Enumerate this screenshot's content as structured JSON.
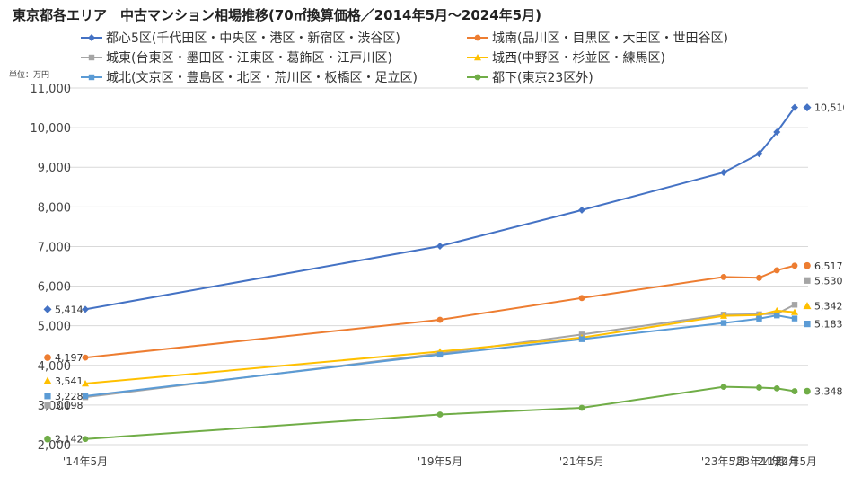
{
  "chart_data": {
    "type": "line",
    "title": "東京都各エリア　中古マンション相場推移(70㎡換算価格／2014年5月～2024年5月)",
    "unit_label": "単位：万円",
    "categories": [
      "'14年5月",
      "'19年5月",
      "'21年5月",
      "'23年5月",
      "'23年11月",
      "'24年2月",
      "'24年5月"
    ],
    "x_months": [
      0,
      60,
      84,
      108,
      114,
      117,
      120
    ],
    "ylim": [
      2000,
      11000
    ],
    "yticks": [
      2000,
      3000,
      4000,
      5000,
      6000,
      7000,
      8000,
      9000,
      10000,
      11000
    ],
    "ytick_labels": [
      "2,000",
      "3,000",
      "4,000",
      "5,000",
      "6,000",
      "7,000",
      "8,000",
      "9,000",
      "10,000",
      "11,000"
    ],
    "series": [
      {
        "name": "都心5区(千代田区・中央区・港区・新宿区・渋谷区)",
        "color": "#4472C4",
        "marker": "diamond",
        "values": [
          5414,
          7010,
          7920,
          8870,
          9340,
          9890,
          10510
        ],
        "start_label": "5,414",
        "end_label": "10,510"
      },
      {
        "name": "城南(品川区・目黒区・大田区・世田谷区)",
        "color": "#ED7D31",
        "marker": "circle",
        "values": [
          4197,
          5150,
          5700,
          6230,
          6210,
          6400,
          6517
        ],
        "start_label": "4,197",
        "end_label": "6,517"
      },
      {
        "name": "城東(台東区・墨田区・江東区・葛飾区・江戸川区)",
        "color": "#A5A5A5",
        "marker": "square",
        "values": [
          3198,
          4300,
          4780,
          5280,
          5290,
          5300,
          5530
        ],
        "start_label": "3,198",
        "end_label": "5,530"
      },
      {
        "name": "城西(中野区・杉並区・練馬区)",
        "color": "#FFC000",
        "marker": "triangle",
        "values": [
          3541,
          4350,
          4700,
          5250,
          5270,
          5380,
          5342
        ],
        "start_label": "3,541",
        "end_label": "5,342"
      },
      {
        "name": "城北(文京区・豊島区・北区・荒川区・板橋区・足立区)",
        "color": "#5B9BD5",
        "marker": "square",
        "values": [
          3228,
          4270,
          4660,
          5070,
          5180,
          5260,
          5183
        ],
        "start_label": "3,228",
        "end_label": "5,183"
      },
      {
        "name": "都下(東京23区外)",
        "color": "#70AD47",
        "marker": "circle",
        "values": [
          2142,
          2760,
          2930,
          3460,
          3440,
          3420,
          3348
        ],
        "start_label": "2,142",
        "end_label": "3,348"
      }
    ],
    "grid": true,
    "legend_position": "top"
  }
}
